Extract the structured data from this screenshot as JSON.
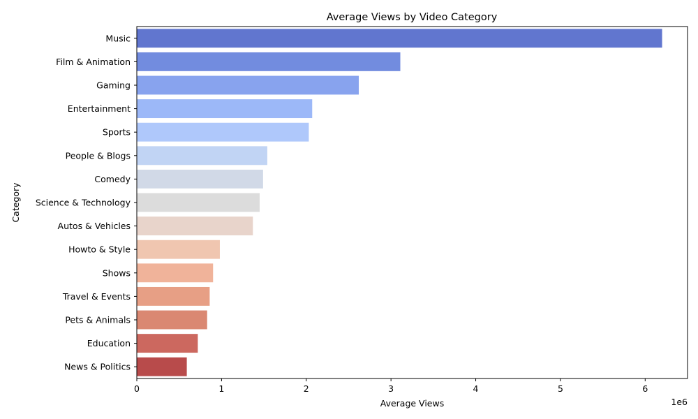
{
  "chart_data": {
    "type": "bar",
    "orientation": "horizontal",
    "title": "Average Views by Video Category",
    "xlabel": "Average Views",
    "ylabel": "Category",
    "x_offset_label": "1e6",
    "xlim": [
      0,
      6500000
    ],
    "xticks": [
      0,
      1000000,
      2000000,
      3000000,
      4000000,
      5000000,
      6000000
    ],
    "xtick_labels": [
      "0",
      "1",
      "2",
      "3",
      "4",
      "5",
      "6"
    ],
    "grid": false,
    "legend": "none",
    "palette": "coolwarm",
    "categories": [
      "Music",
      "Film & Animation",
      "Gaming",
      "Entertainment",
      "Sports",
      "People & Blogs",
      "Comedy",
      "Science & Technology",
      "Autos & Vehicles",
      "Howto & Style",
      "Shows",
      "Travel & Events",
      "Pets & Animals",
      "Education",
      "News & Politics"
    ],
    "values": [
      6200000,
      3110000,
      2620000,
      2070000,
      2030000,
      1540000,
      1490000,
      1450000,
      1370000,
      980000,
      900000,
      860000,
      830000,
      720000,
      590000
    ],
    "colors": [
      "#6176cf",
      "#728cdf",
      "#88a3ee",
      "#9cb8f8",
      "#afc8fb",
      "#c1d4f4",
      "#d1d9e7",
      "#dcdcdc",
      "#e8d4cb",
      "#f0c6b0",
      "#f0b39a",
      "#e79f85",
      "#da8872",
      "#cc685f",
      "#b84b4b"
    ]
  }
}
